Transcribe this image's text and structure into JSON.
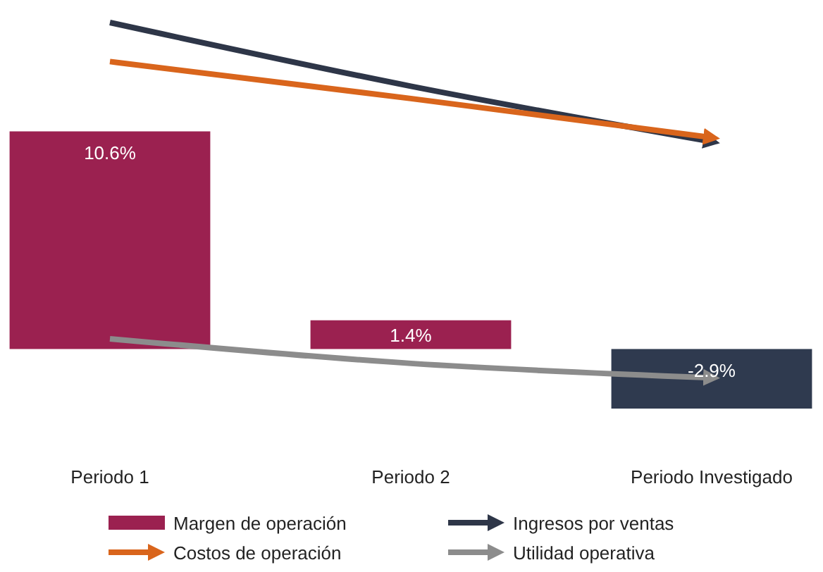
{
  "chart_data": {
    "type": "bar",
    "categories": [
      "Periodo 1",
      "Periodo 2",
      "Periodo Investigado"
    ],
    "series": [
      {
        "name": "Margen de operación",
        "colors": [
          "#9b2150",
          "#9b2150",
          "#2f3a4f"
        ],
        "values": [
          10.6,
          1.4,
          -2.9
        ],
        "value_labels": [
          "10.6%",
          "1.4%",
          "-2.9%"
        ]
      },
      {
        "name": "Ingresos por ventas",
        "type": "line",
        "color": "#2e3648",
        "values": [
          15.9,
          12.8,
          10.1
        ]
      },
      {
        "name": "Costos de operación",
        "type": "line",
        "color": "#d9651c",
        "values": [
          14.0,
          12.2,
          10.3
        ]
      },
      {
        "name": "Utilidad operativa",
        "type": "line",
        "color": "#8c8c8c",
        "values": [
          0.5,
          -0.7,
          -1.4
        ]
      }
    ],
    "legend": "bottom"
  }
}
